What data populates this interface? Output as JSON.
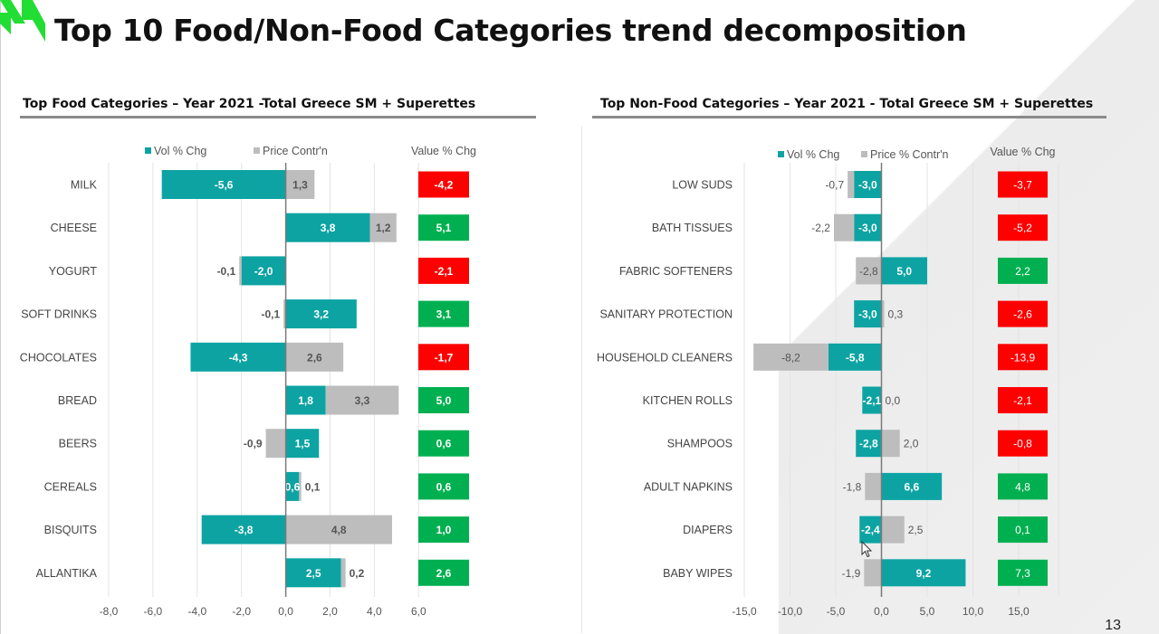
{
  "page": {
    "title": "Top 10 Food/Non-Food Categories trend decomposition",
    "page_number": "13",
    "colors": {
      "vol": "#0da3a3",
      "price": "#bdbdbd",
      "negative": "#ff0000",
      "positive": "#00b050",
      "logo": "#22dd33"
    }
  },
  "chart_data": [
    {
      "type": "bar",
      "subtype": "diverging-stacked-horizontal-bar",
      "title": "Top Food Categories – Year 2021 -Total Greece SM + Superettes",
      "legend": [
        "Vol % Chg",
        "Price Contr'n"
      ],
      "legend_position": "top",
      "value_column_header": "Value % Chg",
      "categories": [
        "MILK",
        "CHEESE",
        "YOGURT",
        "SOFT DRINKS",
        "CHOCOLATES",
        "BREAD",
        "BEERS",
        "CEREALS",
        "BISQUITS",
        "ALLANTIKA"
      ],
      "series": [
        {
          "name": "Vol % Chg",
          "values": [
            -5.6,
            3.8,
            -2.0,
            3.2,
            -4.3,
            1.8,
            1.5,
            0.6,
            -3.8,
            2.5
          ]
        },
        {
          "name": "Price Contr'n",
          "values": [
            1.3,
            1.2,
            -0.1,
            -0.1,
            2.6,
            3.3,
            -0.9,
            0.1,
            4.8,
            0.2
          ]
        }
      ],
      "value_pct_chg": [
        -4.2,
        5.1,
        -2.1,
        3.1,
        -1.7,
        5.0,
        0.6,
        0.6,
        1.0,
        2.6
      ],
      "x_ticks": [
        "-8,0",
        "-6,0",
        "-4,0",
        "-2,0",
        "0,0",
        "2,0",
        "4,0",
        "6,0"
      ],
      "xlim": [
        -8,
        6
      ],
      "grid": true
    },
    {
      "type": "bar",
      "subtype": "diverging-stacked-horizontal-bar",
      "title": "Top Non-Food Categories – Year 2021 - Total Greece SM + Superettes",
      "legend": [
        "Vol % Chg",
        "Price % Contr'n"
      ],
      "legend_position": "top",
      "value_column_header": "Value % Chg",
      "categories": [
        "LOW SUDS",
        "BATH TISSUES",
        "FABRIC SOFTENERS",
        "SANITARY PROTECTION",
        "HOUSEHOLD CLEANERS",
        "KITCHEN ROLLS",
        "SHAMPOOS",
        "ADULT NAPKINS",
        "DIAPERS",
        "BABY WIPES"
      ],
      "series": [
        {
          "name": "Vol % Chg",
          "values": [
            -3.0,
            -3.0,
            5.0,
            -3.0,
            -5.8,
            -2.1,
            -2.8,
            6.6,
            -2.4,
            9.2
          ]
        },
        {
          "name": "Price % Contr'n",
          "values": [
            -0.7,
            -2.2,
            -2.8,
            0.3,
            -8.2,
            0.0,
            2.0,
            -1.8,
            2.5,
            -1.9
          ]
        }
      ],
      "value_pct_chg": [
        -3.7,
        -5.2,
        2.2,
        -2.6,
        -13.9,
        -2.1,
        -0.8,
        4.8,
        0.1,
        7.3
      ],
      "x_ticks": [
        "-15,0",
        "-10,0",
        "-5,0",
        "0,0",
        "5,0",
        "10,0",
        "15,0"
      ],
      "xlim": [
        -15,
        15
      ],
      "grid": true
    }
  ]
}
